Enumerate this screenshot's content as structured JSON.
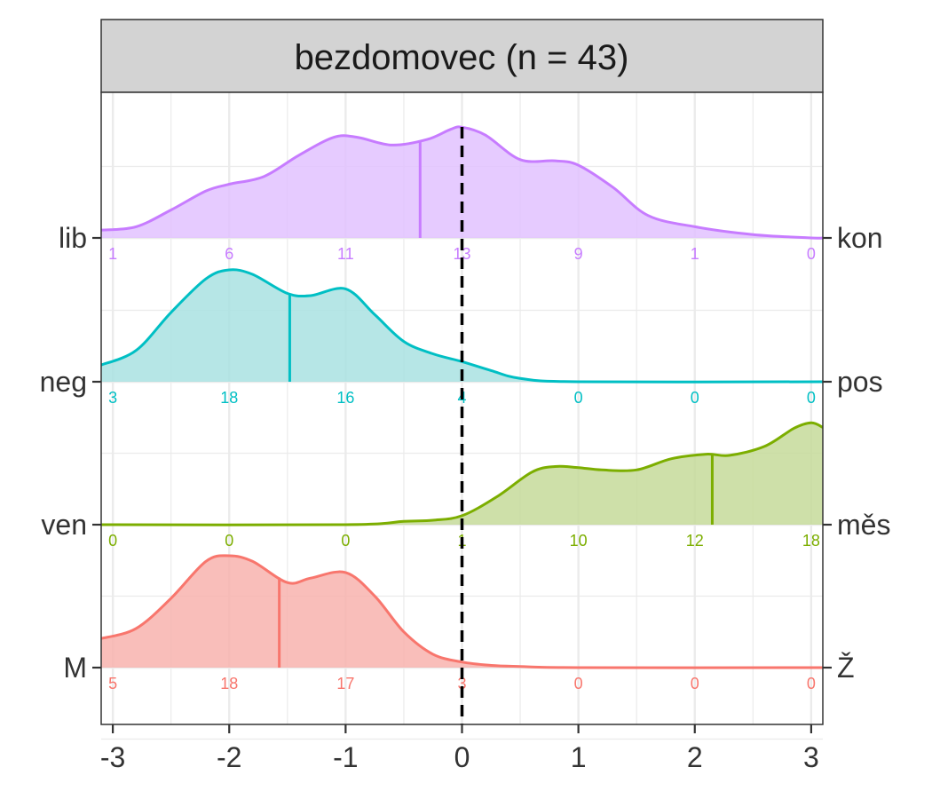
{
  "chart_data": {
    "type": "ridgeline-density",
    "title": "bezdomovec (n = 43)",
    "xlabel": "",
    "ylabel": "",
    "xlim": [
      -3.1,
      3.1
    ],
    "x_ticks": [
      "-3",
      "-2",
      "-1",
      "0",
      "1",
      "2",
      "3"
    ],
    "x_tick_values": [
      -3,
      -2,
      -1,
      0,
      1,
      2,
      3
    ],
    "grid": true,
    "reference_line_x": 0,
    "rows": [
      {
        "left_label": "M",
        "right_label": "Ž",
        "color": "#F8766D",
        "fill": "#F8B3AE",
        "median": -1.57,
        "counts": [
          "5",
          "18",
          "17",
          "3",
          "0",
          "0",
          "0"
        ],
        "density": [
          [
            -3.1,
            0.26
          ],
          [
            -2.8,
            0.35
          ],
          [
            -2.5,
            0.62
          ],
          [
            -2.2,
            0.95
          ],
          [
            -2.0,
            1.0
          ],
          [
            -1.8,
            0.95
          ],
          [
            -1.5,
            0.76
          ],
          [
            -1.3,
            0.8
          ],
          [
            -1.0,
            0.85
          ],
          [
            -0.75,
            0.64
          ],
          [
            -0.5,
            0.32
          ],
          [
            -0.25,
            0.12
          ],
          [
            0.0,
            0.05
          ],
          [
            0.25,
            0.02
          ],
          [
            0.5,
            0.01
          ],
          [
            1.0,
            0.0
          ],
          [
            3.1,
            0.0
          ]
        ]
      },
      {
        "left_label": "ven",
        "right_label": "měs",
        "color": "#7CAE00",
        "fill": "#C5DA9A",
        "median": 2.15,
        "counts": [
          "0",
          "0",
          "0",
          "1",
          "10",
          "12",
          "18"
        ],
        "density": [
          [
            -3.1,
            0.0
          ],
          [
            -1.0,
            0.0
          ],
          [
            -0.5,
            0.03
          ],
          [
            -0.25,
            0.04
          ],
          [
            0.0,
            0.08
          ],
          [
            0.3,
            0.25
          ],
          [
            0.6,
            0.47
          ],
          [
            0.8,
            0.52
          ],
          [
            1.0,
            0.51
          ],
          [
            1.2,
            0.49
          ],
          [
            1.5,
            0.49
          ],
          [
            1.8,
            0.59
          ],
          [
            2.1,
            0.63
          ],
          [
            2.3,
            0.62
          ],
          [
            2.6,
            0.7
          ],
          [
            2.85,
            0.86
          ],
          [
            3.0,
            0.91
          ],
          [
            3.1,
            0.87
          ]
        ]
      },
      {
        "left_label": "neg",
        "right_label": "pos",
        "color": "#00BFC4",
        "fill": "#A9E2E2",
        "median": -1.48,
        "counts": [
          "3",
          "18",
          "16",
          "4",
          "0",
          "0",
          "0"
        ],
        "density": [
          [
            -3.1,
            0.15
          ],
          [
            -2.8,
            0.28
          ],
          [
            -2.5,
            0.62
          ],
          [
            -2.2,
            0.92
          ],
          [
            -2.0,
            1.0
          ],
          [
            -1.8,
            0.96
          ],
          [
            -1.5,
            0.79
          ],
          [
            -1.3,
            0.77
          ],
          [
            -1.0,
            0.83
          ],
          [
            -0.75,
            0.6
          ],
          [
            -0.5,
            0.36
          ],
          [
            -0.25,
            0.25
          ],
          [
            0.0,
            0.18
          ],
          [
            0.25,
            0.1
          ],
          [
            0.5,
            0.03
          ],
          [
            1.0,
            0.0
          ],
          [
            3.1,
            0.0
          ]
        ]
      },
      {
        "left_label": "lib",
        "right_label": "kon",
        "color": "#C77CFF",
        "fill": "#E2C2FF",
        "median": -0.36,
        "counts": [
          "1",
          "6",
          "11",
          "13",
          "9",
          "1",
          "0"
        ],
        "density": [
          [
            -3.1,
            0.07
          ],
          [
            -2.8,
            0.1
          ],
          [
            -2.5,
            0.25
          ],
          [
            -2.2,
            0.42
          ],
          [
            -2.0,
            0.48
          ],
          [
            -1.7,
            0.55
          ],
          [
            -1.4,
            0.74
          ],
          [
            -1.1,
            0.9
          ],
          [
            -0.9,
            0.9
          ],
          [
            -0.6,
            0.83
          ],
          [
            -0.3,
            0.88
          ],
          [
            -0.1,
            0.97
          ],
          [
            0.0,
            0.99
          ],
          [
            0.2,
            0.92
          ],
          [
            0.5,
            0.7
          ],
          [
            0.8,
            0.69
          ],
          [
            1.0,
            0.65
          ],
          [
            1.3,
            0.45
          ],
          [
            1.6,
            0.2
          ],
          [
            2.0,
            0.1
          ],
          [
            2.5,
            0.03
          ],
          [
            3.0,
            0.0
          ],
          [
            3.1,
            0.0
          ]
        ]
      }
    ]
  }
}
